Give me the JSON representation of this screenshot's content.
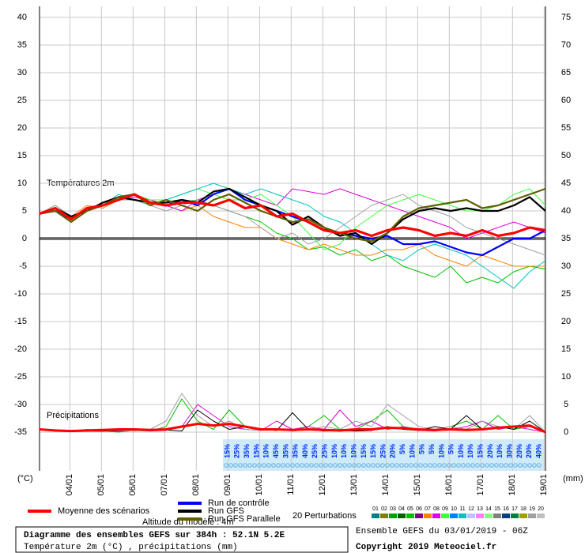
{
  "chart_data": {
    "type": "line",
    "title": "Diagramme des ensembles GEFS sur 384h : 52.1N 5.2E",
    "subtitle": "Température 2m (°C) , précipitations (mm)",
    "run_info": "Ensemble GEFS du 03/01/2019 - 06Z",
    "copyright": "Copyright 2019 Meteociel.fr",
    "altitude": "Altitude du modèle : 4m",
    "temp_label": "Températures 2m",
    "precip_label": "Précipitations",
    "y_unit": "(°C)",
    "y2_unit": "(mm)",
    "perturbations_label": "20 Perturbations",
    "perturbation_legend": [
      {
        "label": "01",
        "color": "#008080"
      },
      {
        "label": "02",
        "color": "#808000"
      },
      {
        "label": "03",
        "color": "#00a000"
      },
      {
        "label": "04",
        "color": "#006000"
      },
      {
        "label": "05",
        "color": "#00c000"
      },
      {
        "label": "06",
        "color": "#800080"
      },
      {
        "label": "07",
        "color": "#ff8000"
      },
      {
        "label": "08",
        "color": "#e000e0"
      },
      {
        "label": "09",
        "color": "#40ff40"
      },
      {
        "label": "10",
        "color": "#0080ff"
      },
      {
        "label": "11",
        "color": "#00c0c0"
      },
      {
        "label": "12",
        "color": "#c0c0ff"
      },
      {
        "label": "13",
        "color": "#ff80ff"
      },
      {
        "label": "14",
        "color": "#80ff80"
      },
      {
        "label": "15",
        "color": "#808080"
      },
      {
        "label": "16",
        "color": "#004080"
      },
      {
        "label": "17",
        "color": "#008040"
      },
      {
        "label": "18",
        "color": "#a0a000"
      },
      {
        "label": "19",
        "color": "#a0a0a0"
      },
      {
        "label": "20",
        "color": "#c0c0c0"
      }
    ],
    "snow_percent": [
      "15%",
      "25%",
      "35%",
      "15%",
      "10%",
      "45%",
      "35%",
      "35%",
      "40%",
      "25%",
      "25%",
      "10%",
      "10%",
      "10%",
      "15%",
      "15%",
      "25%",
      "20%",
      "5%",
      "10%",
      "5%",
      "5%",
      "10%",
      "5%",
      "10%",
      "10%",
      "15%",
      "20%",
      "10%",
      "30%",
      "20%",
      "20%",
      "40%"
    ],
    "x": [
      0,
      12,
      24,
      36,
      48,
      60,
      72,
      84,
      96,
      108,
      120,
      132,
      144,
      156,
      168,
      180,
      192,
      204,
      216,
      228,
      240,
      252,
      264,
      276,
      288,
      300,
      312,
      324,
      336,
      348,
      360,
      372,
      384
    ],
    "xlim": [
      0,
      384
    ],
    "xticks": [
      {
        "value": 23,
        "label": "04/01"
      },
      {
        "value": 47,
        "label": "05/01"
      },
      {
        "value": 71,
        "label": "06/01"
      },
      {
        "value": 95,
        "label": "07/01"
      },
      {
        "value": 119,
        "label": "08/01"
      },
      {
        "value": 143,
        "label": "09/01"
      },
      {
        "value": 167,
        "label": "10/01"
      },
      {
        "value": 191,
        "label": "11/01"
      },
      {
        "value": 215,
        "label": "12/01"
      },
      {
        "value": 239,
        "label": "13/01"
      },
      {
        "value": 263,
        "label": "14/01"
      },
      {
        "value": 287,
        "label": "15/01"
      },
      {
        "value": 311,
        "label": "16/01"
      },
      {
        "value": 335,
        "label": "17/01"
      },
      {
        "value": 359,
        "label": "18/01"
      },
      {
        "value": 383,
        "label": "19/01"
      }
    ],
    "ylim": [
      -42,
      42
    ],
    "yticks": [
      -35,
      -30,
      -25,
      -20,
      -15,
      -10,
      -5,
      0,
      5,
      10,
      15,
      20,
      25,
      30,
      35,
      40
    ],
    "y2lim": [
      -7,
      77
    ],
    "y2ticks": [
      0,
      5,
      10,
      15,
      20,
      25,
      30,
      35,
      40,
      45,
      50,
      55,
      60,
      65,
      70,
      75
    ],
    "grid": true,
    "series": [
      {
        "name": "Moyenne des scénarios",
        "color": "#ff0000",
        "values": [
          4.5,
          5.5,
          3.5,
          5.5,
          6,
          7,
          8,
          6.5,
          6,
          6.5,
          6.5,
          6,
          7,
          5.5,
          6,
          4,
          4.5,
          3,
          1.5,
          1,
          1.5,
          0.5,
          1.5,
          2,
          1.5,
          0.5,
          1,
          0.5,
          1.5,
          0.5,
          1,
          2,
          1.5
        ]
      },
      {
        "name": "Run de contrôle",
        "color": "#0000ff",
        "values": [
          4.5,
          5,
          3.5,
          5.5,
          6,
          7.5,
          8,
          6.5,
          6,
          7,
          6,
          8,
          9,
          7,
          6,
          5,
          4,
          3,
          1.5,
          1,
          0.5,
          0,
          0.5,
          -1,
          -1,
          -0.5,
          -1.5,
          -2.5,
          -3,
          -1.5,
          0,
          0,
          1.5
        ]
      },
      {
        "name": "Run GFS",
        "color": "#000000",
        "values": [
          4.5,
          5.5,
          4,
          5,
          6.5,
          7.5,
          7,
          6.5,
          6.5,
          7,
          6.5,
          8.5,
          9,
          7.5,
          6,
          5,
          2.5,
          4,
          2,
          0.5,
          1,
          -1,
          1,
          3.5,
          5,
          5.5,
          5,
          5.5,
          5,
          5,
          6,
          7.5,
          5
        ]
      },
      {
        "name": "Run GFS Parallele",
        "color": "#606000",
        "values": [
          4.5,
          5,
          3,
          5,
          6,
          7.5,
          8,
          6,
          7,
          6,
          5,
          7,
          8,
          6.5,
          5,
          4,
          3,
          3.5,
          2,
          1,
          0,
          -0.5,
          1,
          4,
          5.5,
          6,
          6.5,
          7,
          5.5,
          6,
          7,
          8,
          9
        ]
      },
      {
        "color": "#00c000",
        "values": [
          4.5,
          6,
          4,
          5,
          6.5,
          7,
          8,
          7,
          6,
          6.5,
          7,
          6,
          5,
          4,
          3,
          1,
          0,
          -2,
          -1.5,
          -3,
          -2,
          -4,
          -3,
          -5,
          -6,
          -7,
          -5,
          -8,
          -7,
          -8,
          -6,
          -5,
          -5.5
        ]
      },
      {
        "color": "#ff8000",
        "values": [
          4.5,
          5,
          4,
          6,
          5.5,
          7,
          8,
          7,
          6,
          5,
          6,
          4,
          3,
          2,
          2,
          0,
          -1,
          -2,
          -1,
          -2,
          -3,
          -3,
          -2,
          -2,
          -1,
          -3,
          -4,
          -5,
          -3,
          -4,
          -5,
          -5,
          -5
        ]
      },
      {
        "color": "#e000e0",
        "values": [
          4.5,
          5,
          3,
          5,
          6,
          7,
          7.5,
          7,
          6,
          5,
          7,
          8,
          9,
          8,
          7,
          6,
          9,
          8.5,
          8,
          9,
          8,
          7,
          6,
          5,
          4,
          3,
          2,
          0,
          1,
          2,
          3,
          2,
          1
        ]
      },
      {
        "color": "#40ff40",
        "values": [
          4.5,
          5.5,
          4,
          5,
          6,
          7,
          8,
          7,
          7,
          8,
          9,
          8,
          7,
          7,
          8,
          6,
          4,
          1,
          -2,
          -1,
          2,
          4,
          6,
          7,
          8,
          7,
          6,
          5,
          5,
          6,
          8,
          9,
          6
        ]
      },
      {
        "color": "#00c0c0",
        "values": [
          4.5,
          5,
          3,
          5,
          6,
          8,
          7,
          6,
          7,
          8,
          9,
          10,
          9,
          8,
          9,
          8,
          7,
          6,
          4,
          3,
          1,
          -1,
          -3,
          -4,
          -2,
          -1,
          -2,
          -3,
          -5,
          -7,
          -9,
          -6,
          -4
        ]
      },
      {
        "color": "#a0a0a0",
        "values": [
          4.5,
          6,
          4,
          5,
          6,
          7,
          7,
          6,
          5,
          6,
          7,
          6,
          5,
          4,
          2,
          0,
          1,
          -1,
          0,
          2,
          4,
          6,
          7,
          8,
          6,
          5,
          4,
          2,
          1,
          0,
          -1,
          -2,
          -3
        ]
      },
      {
        "color": "#00c000",
        "axis": "y2",
        "values": [
          0.5,
          0.2,
          0.1,
          0.5,
          0.2,
          0,
          0.3,
          0.2,
          1,
          6,
          2,
          0.5,
          4,
          1,
          0.5,
          0.5,
          0.3,
          1,
          3,
          0.5,
          0.5,
          2,
          4,
          1,
          0.5,
          0.5,
          1,
          2,
          0.5,
          3,
          0.5,
          1,
          0
        ]
      },
      {
        "color": "#e000e0",
        "axis": "y2",
        "values": [
          0.5,
          0.2,
          0.1,
          0.2,
          0.3,
          0.1,
          0.5,
          0.2,
          0.3,
          1,
          5,
          3,
          1,
          0.5,
          0.3,
          2,
          0.5,
          1,
          0.5,
          4,
          1,
          2,
          0.5,
          1,
          0.3,
          0.2,
          0.5,
          1,
          2,
          0.5,
          1,
          0.5,
          0
        ]
      },
      {
        "color": "#a0a0a0",
        "axis": "y2",
        "values": [
          0.5,
          0.2,
          0.1,
          0.2,
          0.1,
          0.3,
          0.2,
          0.5,
          2,
          7,
          3,
          1,
          2,
          0.5,
          0.3,
          0.5,
          0.2,
          0.5,
          1,
          0.5,
          2,
          1,
          5,
          3,
          1,
          0.5,
          1,
          0.5,
          2,
          1,
          0.5,
          3,
          0
        ]
      },
      {
        "color": "#000000",
        "axis": "y2",
        "values": [
          0.5,
          0.2,
          0.1,
          0.2,
          0.2,
          0.3,
          0.5,
          0.5,
          0.4,
          0.2,
          4,
          2,
          0.5,
          1,
          0.5,
          0.3,
          3.5,
          0.5,
          0.2,
          0.3,
          0.2,
          0.3,
          1,
          0.5,
          0.3,
          1,
          0.5,
          3,
          0.5,
          1,
          0.5,
          2,
          0
        ]
      },
      {
        "color": "#ff0000",
        "axis": "y2",
        "values": [
          0.5,
          0.3,
          0.2,
          0.3,
          0.4,
          0.5,
          0.5,
          0.4,
          0.5,
          1,
          1.5,
          1.2,
          1.5,
          1,
          0.5,
          0.5,
          0.4,
          0.5,
          0.4,
          0.3,
          0.5,
          0.5,
          0.8,
          0.7,
          0.5,
          0.4,
          0.5,
          0.4,
          0.5,
          0.8,
          1,
          1.2,
          0
        ]
      }
    ]
  }
}
